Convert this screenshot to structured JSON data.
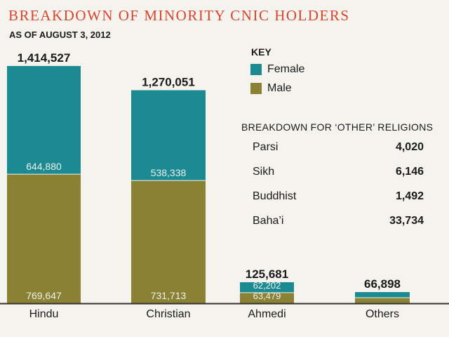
{
  "title": "BREAKDOWN OF MINORITY CNIC HOLDERS",
  "subtitle": "AS OF AUGUST 3, 2012",
  "key": {
    "title": "KEY",
    "items": [
      {
        "label": "Female",
        "color": "#1b8a93"
      },
      {
        "label": "Male",
        "color": "#8a8135"
      }
    ]
  },
  "others_breakdown": {
    "title": "BREAKDOWN FOR ‘OTHER’ RELIGIONS",
    "rows": [
      {
        "name": "Parsi",
        "value": "4,020"
      },
      {
        "name": "Sikh",
        "value": "6,146"
      },
      {
        "name": "Buddhist",
        "value": "1,492"
      },
      {
        "name": "Baha’i",
        "value": "33,734"
      }
    ]
  },
  "chart_data": {
    "type": "bar",
    "stacked": true,
    "categories": [
      "Hindu",
      "Christian",
      "Ahmedi",
      "Others"
    ],
    "totals": [
      1414527,
      1270051,
      125681,
      66898
    ],
    "total_labels": [
      "1,414,527",
      "1,270,051",
      "125,681",
      "66,898"
    ],
    "series": [
      {
        "name": "Male",
        "color": "#8a8135",
        "values": [
          769647,
          731713,
          63479,
          33449
        ],
        "labels": [
          "769,647",
          "731,713",
          "63,479",
          ""
        ]
      },
      {
        "name": "Female",
        "color": "#1b8a93",
        "values": [
          644880,
          538338,
          62202,
          33449
        ],
        "labels": [
          "644,880",
          "538,338",
          "62,202",
          ""
        ]
      }
    ],
    "ylim": [
      0,
      1414527
    ],
    "legend": "top-right"
  }
}
